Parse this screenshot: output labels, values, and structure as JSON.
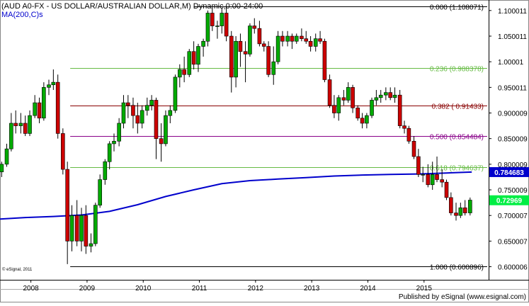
{
  "header": {
    "title": "(AUD A0-FX - US DOLLAR/AUSTRALIAN DOLLAR,M) Dynamic,0:00-24:00",
    "indicator": "MA(200,C)s"
  },
  "footer": {
    "copyright": "© eSignal, 2011",
    "publisher": "Published by eSignal (www.esignal.com)"
  },
  "chart_data": {
    "type": "candlestick",
    "title": "(AUD A0-FX - US DOLLAR/AUSTRALIAN DOLLAR,M) Dynamic,0:00-24:00",
    "ylim": [
      0.58,
      1.115
    ],
    "xlim": [
      2007.55,
      2016.25
    ],
    "x_ticks": [
      "2008",
      "2009",
      "2010",
      "2011",
      "2012",
      "2013",
      "2014",
      "2015"
    ],
    "y_ticks": [
      "1.100011",
      "1.050011",
      "1.00001",
      "0.950011",
      "0.900009",
      "0.850009",
      "0.800009",
      "0.750009",
      "0.700007",
      "0.650007",
      "0.600006"
    ],
    "grid": false,
    "colors": {
      "up": "#00aa00",
      "down": "#cc0000",
      "ma": "#0000cc",
      "fib_green": "#66bb44",
      "fib_red": "#880000",
      "fib_purple": "#880088",
      "fib_black": "#000000"
    },
    "fib_levels": [
      {
        "label": "0.000 (1.108071)",
        "value": 1.108071,
        "color": "#000000",
        "x_start": 2011.0
      },
      {
        "label": "0.236 (0.988378)",
        "value": 0.988378,
        "color": "#66bb44",
        "x_start": 2008.8
      },
      {
        "label": "0.382 ( 0.91433)",
        "value": 0.91433,
        "color": "#880000",
        "x_start": 2008.8
      },
      {
        "label": "0.500 (0.854484)",
        "value": 0.854484,
        "color": "#880088",
        "x_start": 2008.8
      },
      {
        "label": "0.618 (0.794637)",
        "value": 0.794637,
        "color": "#66bb44",
        "x_start": 2008.8
      },
      {
        "label": "1.000 (0.600896)",
        "value": 0.600896,
        "color": "#000000",
        "x_start": 2008.8
      }
    ],
    "price_labels": [
      {
        "label": "0.784683",
        "value": 0.784683,
        "bg": "#0000cc",
        "color": "#ffffff"
      },
      {
        "label": "0.72969",
        "value": 0.72969,
        "bg": "#00ee44",
        "color": "#ffffff"
      }
    ],
    "ma_series": {
      "name": "MA(200,C)s",
      "points": [
        [
          2007.55,
          0.693
        ],
        [
          2008.0,
          0.696
        ],
        [
          2008.5,
          0.698
        ],
        [
          2009.0,
          0.701
        ],
        [
          2009.5,
          0.708
        ],
        [
          2010.0,
          0.721
        ],
        [
          2010.5,
          0.737
        ],
        [
          2011.0,
          0.75
        ],
        [
          2011.5,
          0.762
        ],
        [
          2012.0,
          0.768
        ],
        [
          2012.5,
          0.771
        ],
        [
          2013.0,
          0.774
        ],
        [
          2013.5,
          0.777
        ],
        [
          2014.0,
          0.779
        ],
        [
          2014.5,
          0.78
        ],
        [
          2015.0,
          0.781
        ],
        [
          2015.5,
          0.783
        ],
        [
          2015.95,
          0.784683
        ]
      ]
    },
    "candles": [
      {
        "t": 2007.58,
        "o": 0.785,
        "h": 0.805,
        "l": 0.775,
        "c": 0.8
      },
      {
        "t": 2007.67,
        "o": 0.8,
        "h": 0.84,
        "l": 0.795,
        "c": 0.83
      },
      {
        "t": 2007.75,
        "o": 0.83,
        "h": 0.9,
        "l": 0.825,
        "c": 0.88
      },
      {
        "t": 2007.83,
        "o": 0.88,
        "h": 0.905,
        "l": 0.86,
        "c": 0.875
      },
      {
        "t": 2007.92,
        "o": 0.875,
        "h": 0.9,
        "l": 0.86,
        "c": 0.88
      },
      {
        "t": 2008.0,
        "o": 0.88,
        "h": 0.895,
        "l": 0.855,
        "c": 0.86
      },
      {
        "t": 2008.08,
        "o": 0.86,
        "h": 0.905,
        "l": 0.855,
        "c": 0.895
      },
      {
        "t": 2008.17,
        "o": 0.895,
        "h": 0.935,
        "l": 0.89,
        "c": 0.92
      },
      {
        "t": 2008.25,
        "o": 0.92,
        "h": 0.93,
        "l": 0.88,
        "c": 0.89
      },
      {
        "t": 2008.33,
        "o": 0.89,
        "h": 0.96,
        "l": 0.885,
        "c": 0.95
      },
      {
        "t": 2008.42,
        "o": 0.95,
        "h": 0.965,
        "l": 0.935,
        "c": 0.955
      },
      {
        "t": 2008.5,
        "o": 0.955,
        "h": 0.985,
        "l": 0.945,
        "c": 0.96
      },
      {
        "t": 2008.58,
        "o": 0.96,
        "h": 0.975,
        "l": 0.85,
        "c": 0.86
      },
      {
        "t": 2008.67,
        "o": 0.86,
        "h": 0.87,
        "l": 0.78,
        "c": 0.79
      },
      {
        "t": 2008.75,
        "o": 0.79,
        "h": 0.805,
        "l": 0.605,
        "c": 0.65
      },
      {
        "t": 2008.83,
        "o": 0.65,
        "h": 0.72,
        "l": 0.63,
        "c": 0.7
      },
      {
        "t": 2008.92,
        "o": 0.7,
        "h": 0.73,
        "l": 0.64,
        "c": 0.65
      },
      {
        "t": 2009.0,
        "o": 0.65,
        "h": 0.715,
        "l": 0.63,
        "c": 0.7
      },
      {
        "t": 2009.08,
        "o": 0.7,
        "h": 0.72,
        "l": 0.625,
        "c": 0.64
      },
      {
        "t": 2009.17,
        "o": 0.64,
        "h": 0.665,
        "l": 0.628,
        "c": 0.645
      },
      {
        "t": 2009.25,
        "o": 0.645,
        "h": 0.725,
        "l": 0.64,
        "c": 0.72
      },
      {
        "t": 2009.33,
        "o": 0.72,
        "h": 0.78,
        "l": 0.715,
        "c": 0.77
      },
      {
        "t": 2009.42,
        "o": 0.77,
        "h": 0.81,
        "l": 0.76,
        "c": 0.805
      },
      {
        "t": 2009.5,
        "o": 0.805,
        "h": 0.845,
        "l": 0.79,
        "c": 0.84
      },
      {
        "t": 2009.58,
        "o": 0.84,
        "h": 0.86,
        "l": 0.825,
        "c": 0.845
      },
      {
        "t": 2009.67,
        "o": 0.845,
        "h": 0.89,
        "l": 0.835,
        "c": 0.88
      },
      {
        "t": 2009.75,
        "o": 0.88,
        "h": 0.935,
        "l": 0.87,
        "c": 0.92
      },
      {
        "t": 2009.83,
        "o": 0.92,
        "h": 0.935,
        "l": 0.89,
        "c": 0.915
      },
      {
        "t": 2009.92,
        "o": 0.915,
        "h": 0.93,
        "l": 0.87,
        "c": 0.895
      },
      {
        "t": 2010.0,
        "o": 0.895,
        "h": 0.92,
        "l": 0.86,
        "c": 0.88
      },
      {
        "t": 2010.08,
        "o": 0.88,
        "h": 0.915,
        "l": 0.87,
        "c": 0.905
      },
      {
        "t": 2010.17,
        "o": 0.905,
        "h": 0.93,
        "l": 0.895,
        "c": 0.915
      },
      {
        "t": 2010.25,
        "o": 0.915,
        "h": 0.935,
        "l": 0.905,
        "c": 0.925
      },
      {
        "t": 2010.33,
        "o": 0.925,
        "h": 0.93,
        "l": 0.81,
        "c": 0.85
      },
      {
        "t": 2010.42,
        "o": 0.85,
        "h": 0.88,
        "l": 0.805,
        "c": 0.84
      },
      {
        "t": 2010.5,
        "o": 0.84,
        "h": 0.905,
        "l": 0.835,
        "c": 0.895
      },
      {
        "t": 2010.58,
        "o": 0.895,
        "h": 0.915,
        "l": 0.88,
        "c": 0.905
      },
      {
        "t": 2010.67,
        "o": 0.905,
        "h": 0.975,
        "l": 0.9,
        "c": 0.97
      },
      {
        "t": 2010.75,
        "o": 0.97,
        "h": 0.995,
        "l": 0.95,
        "c": 0.985
      },
      {
        "t": 2010.83,
        "o": 0.985,
        "h": 1.01,
        "l": 0.96,
        "c": 0.975
      },
      {
        "t": 2010.92,
        "o": 0.975,
        "h": 1.025,
        "l": 0.97,
        "c": 1.02
      },
      {
        "t": 2011.0,
        "o": 1.02,
        "h": 1.04,
        "l": 0.985,
        "c": 0.995
      },
      {
        "t": 2011.08,
        "o": 0.995,
        "h": 1.035,
        "l": 0.98,
        "c": 1.03
      },
      {
        "t": 2011.17,
        "o": 1.03,
        "h": 1.045,
        "l": 1.01,
        "c": 1.04
      },
      {
        "t": 2011.25,
        "o": 1.04,
        "h": 1.1,
        "l": 1.03,
        "c": 1.095
      },
      {
        "t": 2011.33,
        "o": 1.095,
        "h": 1.105,
        "l": 1.06,
        "c": 1.07
      },
      {
        "t": 2011.42,
        "o": 1.07,
        "h": 1.08,
        "l": 1.045,
        "c": 1.07
      },
      {
        "t": 2011.5,
        "o": 1.07,
        "h": 1.105,
        "l": 1.055,
        "c": 1.095
      },
      {
        "t": 2011.58,
        "o": 1.095,
        "h": 1.108,
        "l": 1.04,
        "c": 1.05
      },
      {
        "t": 2011.67,
        "o": 1.05,
        "h": 1.06,
        "l": 0.94,
        "c": 0.97
      },
      {
        "t": 2011.75,
        "o": 0.97,
        "h": 1.05,
        "l": 0.95,
        "c": 1.04
      },
      {
        "t": 2011.83,
        "o": 1.04,
        "h": 1.055,
        "l": 0.99,
        "c": 1.02
      },
      {
        "t": 2011.92,
        "o": 1.02,
        "h": 1.04,
        "l": 0.96,
        "c": 1.015
      },
      {
        "t": 2012.0,
        "o": 1.015,
        "h": 1.075,
        "l": 1.01,
        "c": 1.07
      },
      {
        "t": 2012.08,
        "o": 1.07,
        "h": 1.085,
        "l": 1.055,
        "c": 1.065
      },
      {
        "t": 2012.17,
        "o": 1.065,
        "h": 1.08,
        "l": 1.03,
        "c": 1.035
      },
      {
        "t": 2012.25,
        "o": 1.035,
        "h": 1.04,
        "l": 1.02,
        "c": 1.03
      },
      {
        "t": 2012.33,
        "o": 1.03,
        "h": 1.04,
        "l": 0.97,
        "c": 0.975
      },
      {
        "t": 2012.42,
        "o": 0.975,
        "h": 1.03,
        "l": 0.955,
        "c": 1.0
      },
      {
        "t": 2012.5,
        "o": 1.0,
        "h": 1.06,
        "l": 0.995,
        "c": 1.05
      },
      {
        "t": 2012.58,
        "o": 1.05,
        "h": 1.06,
        "l": 1.03,
        "c": 1.04
      },
      {
        "t": 2012.67,
        "o": 1.04,
        "h": 1.06,
        "l": 1.03,
        "c": 1.05
      },
      {
        "t": 2012.75,
        "o": 1.05,
        "h": 1.055,
        "l": 1.025,
        "c": 1.04
      },
      {
        "t": 2012.83,
        "o": 1.04,
        "h": 1.055,
        "l": 1.035,
        "c": 1.05
      },
      {
        "t": 2012.92,
        "o": 1.05,
        "h": 1.065,
        "l": 1.04,
        "c": 1.045
      },
      {
        "t": 2013.0,
        "o": 1.045,
        "h": 1.06,
        "l": 1.035,
        "c": 1.04
      },
      {
        "t": 2013.08,
        "o": 1.04,
        "h": 1.05,
        "l": 1.02,
        "c": 1.03
      },
      {
        "t": 2013.17,
        "o": 1.03,
        "h": 1.055,
        "l": 1.02,
        "c": 1.045
      },
      {
        "t": 2013.25,
        "o": 1.045,
        "h": 1.06,
        "l": 1.035,
        "c": 1.04
      },
      {
        "t": 2013.33,
        "o": 1.04,
        "h": 1.045,
        "l": 0.96,
        "c": 0.965
      },
      {
        "t": 2013.42,
        "o": 0.965,
        "h": 0.975,
        "l": 0.91,
        "c": 0.915
      },
      {
        "t": 2013.5,
        "o": 0.915,
        "h": 0.935,
        "l": 0.89,
        "c": 0.9
      },
      {
        "t": 2013.58,
        "o": 0.9,
        "h": 0.935,
        "l": 0.885,
        "c": 0.93
      },
      {
        "t": 2013.67,
        "o": 0.93,
        "h": 0.945,
        "l": 0.915,
        "c": 0.925
      },
      {
        "t": 2013.75,
        "o": 0.925,
        "h": 0.96,
        "l": 0.92,
        "c": 0.95
      },
      {
        "t": 2013.83,
        "o": 0.95,
        "h": 0.955,
        "l": 0.9,
        "c": 0.91
      },
      {
        "t": 2013.92,
        "o": 0.91,
        "h": 0.915,
        "l": 0.885,
        "c": 0.89
      },
      {
        "t": 2014.0,
        "o": 0.89,
        "h": 0.9,
        "l": 0.87,
        "c": 0.88
      },
      {
        "t": 2014.08,
        "o": 0.88,
        "h": 0.9,
        "l": 0.87,
        "c": 0.895
      },
      {
        "t": 2014.17,
        "o": 0.895,
        "h": 0.93,
        "l": 0.89,
        "c": 0.925
      },
      {
        "t": 2014.25,
        "o": 0.925,
        "h": 0.945,
        "l": 0.915,
        "c": 0.93
      },
      {
        "t": 2014.33,
        "o": 0.93,
        "h": 0.945,
        "l": 0.92,
        "c": 0.935
      },
      {
        "t": 2014.42,
        "o": 0.935,
        "h": 0.95,
        "l": 0.925,
        "c": 0.94
      },
      {
        "t": 2014.5,
        "o": 0.94,
        "h": 0.95,
        "l": 0.925,
        "c": 0.93
      },
      {
        "t": 2014.58,
        "o": 0.93,
        "h": 0.95,
        "l": 0.92,
        "c": 0.935
      },
      {
        "t": 2014.67,
        "o": 0.935,
        "h": 0.945,
        "l": 0.87,
        "c": 0.875
      },
      {
        "t": 2014.75,
        "o": 0.875,
        "h": 0.885,
        "l": 0.86,
        "c": 0.87
      },
      {
        "t": 2014.83,
        "o": 0.87,
        "h": 0.875,
        "l": 0.84,
        "c": 0.845
      },
      {
        "t": 2014.92,
        "o": 0.845,
        "h": 0.855,
        "l": 0.81,
        "c": 0.815
      },
      {
        "t": 2015.0,
        "o": 0.815,
        "h": 0.83,
        "l": 0.775,
        "c": 0.78
      },
      {
        "t": 2015.08,
        "o": 0.78,
        "h": 0.795,
        "l": 0.765,
        "c": 0.78
      },
      {
        "t": 2015.17,
        "o": 0.78,
        "h": 0.8,
        "l": 0.755,
        "c": 0.76
      },
      {
        "t": 2015.25,
        "o": 0.76,
        "h": 0.805,
        "l": 0.75,
        "c": 0.78
      },
      {
        "t": 2015.33,
        "o": 0.78,
        "h": 0.815,
        "l": 0.765,
        "c": 0.77
      },
      {
        "t": 2015.42,
        "o": 0.77,
        "h": 0.79,
        "l": 0.755,
        "c": 0.765
      },
      {
        "t": 2015.5,
        "o": 0.765,
        "h": 0.77,
        "l": 0.73,
        "c": 0.735
      },
      {
        "t": 2015.58,
        "o": 0.735,
        "h": 0.745,
        "l": 0.7,
        "c": 0.705
      },
      {
        "t": 2015.67,
        "o": 0.705,
        "h": 0.725,
        "l": 0.69,
        "c": 0.7
      },
      {
        "t": 2015.75,
        "o": 0.7,
        "h": 0.725,
        "l": 0.695,
        "c": 0.715
      },
      {
        "t": 2015.83,
        "o": 0.715,
        "h": 0.73,
        "l": 0.7,
        "c": 0.705
      },
      {
        "t": 2015.92,
        "o": 0.705,
        "h": 0.735,
        "l": 0.7,
        "c": 0.73
      }
    ]
  }
}
